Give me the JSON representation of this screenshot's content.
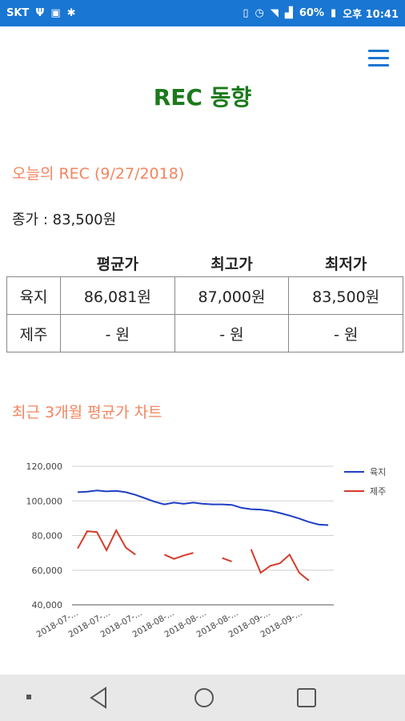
{
  "status_bar": {
    "carrier": "SKT",
    "battery": "60%",
    "time": "오후 10:41"
  },
  "header": {
    "title": "REC 동향"
  },
  "today": {
    "heading": "오늘의 REC (9/27/2018)",
    "close_price": "종가 : 83,500원"
  },
  "price_table": {
    "columns": [
      "평균가",
      "최고가",
      "최저가"
    ],
    "rows": [
      {
        "region": "육지",
        "avg": "86,081원",
        "max": "87,000원",
        "min": "83,500원"
      },
      {
        "region": "제주",
        "avg": "- 원",
        "max": "- 원",
        "min": "- 원"
      }
    ]
  },
  "chart_section": {
    "heading": "최근 3개월 평균가 차트"
  },
  "chart_data": {
    "type": "line",
    "ylim": [
      40000,
      120000
    ],
    "yticks": [
      "120,000",
      "100,000",
      "80,000",
      "60,000",
      "40,000"
    ],
    "ytick_values": [
      120000,
      100000,
      80000,
      60000,
      40000
    ],
    "xtick_labels": [
      "2018-07-...",
      "2018-07-...",
      "2018-07-...",
      "2018-08-...",
      "2018-08-...",
      "2018-08-...",
      "2018-09-...",
      "2018-09-..."
    ],
    "legend_position": "right",
    "series": [
      {
        "name": "육지",
        "color": "#1f3fc4",
        "values": [
          105000,
          105300,
          106000,
          105500,
          105800,
          105000,
          103500,
          101500,
          99500,
          98000,
          99000,
          98300,
          99000,
          98300,
          98000,
          98000,
          97700,
          96000,
          95200,
          95000,
          94300,
          93000,
          91500,
          89800,
          87800,
          86400,
          86000
        ]
      },
      {
        "name": "제주",
        "color": "#d63b2b",
        "values": [
          72500,
          82500,
          82000,
          71500,
          83000,
          73000,
          69000,
          null,
          null,
          69000,
          66500,
          68500,
          70000,
          null,
          null,
          67000,
          65000,
          null,
          72000,
          58500,
          62500,
          64000,
          69000,
          58500,
          54000,
          null,
          null
        ]
      }
    ]
  },
  "nav": {
    "icons": [
      "recent-apps-dot-icon",
      "back-icon",
      "home-icon",
      "overview-icon"
    ]
  }
}
